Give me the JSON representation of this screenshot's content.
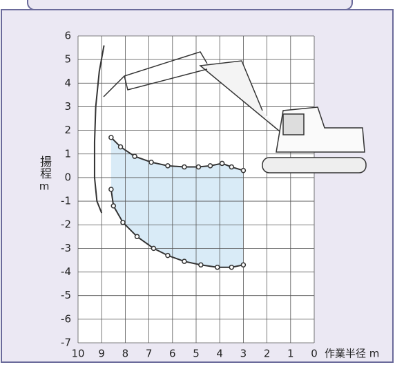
{
  "chart_data": {
    "type": "line",
    "y_label": "揚程",
    "y_unit": "m",
    "x_label": "作業半径 m",
    "xlim": [
      10,
      0
    ],
    "ylim": [
      -7,
      6
    ],
    "xticks": [
      10,
      9,
      8,
      7,
      6,
      5,
      4,
      3,
      2,
      1,
      0
    ],
    "yticks": [
      6,
      5,
      4,
      3,
      2,
      1,
      0,
      -1,
      -2,
      -3,
      -4,
      -5,
      -6,
      -7
    ],
    "grid": true,
    "series": [
      {
        "color": "#333333",
        "markers": false,
        "x": [
          8.9,
          9.1,
          9.25,
          9.3,
          9.3,
          9.2,
          9.0
        ],
        "values": [
          5.6,
          4.5,
          3.0,
          1.5,
          0.0,
          -1.0,
          -1.5
        ]
      },
      {
        "color": "#333333",
        "markers": true,
        "x": [
          8.6,
          8.2,
          7.6,
          6.9,
          6.2,
          5.5,
          4.9,
          4.4,
          3.9,
          3.5,
          3.0
        ],
        "values": [
          1.7,
          1.3,
          0.9,
          0.65,
          0.5,
          0.45,
          0.45,
          0.5,
          0.6,
          0.45,
          0.3
        ]
      },
      {
        "color": "#333333",
        "markers": true,
        "x": [
          8.6,
          8.5,
          8.1,
          7.5,
          6.8,
          6.2,
          5.5,
          4.8,
          4.1,
          3.5,
          3.0
        ],
        "values": [
          -0.5,
          -1.2,
          -1.9,
          -2.5,
          -3.0,
          -3.3,
          -3.55,
          -3.7,
          -3.8,
          -3.8,
          -3.7
        ]
      }
    ]
  }
}
